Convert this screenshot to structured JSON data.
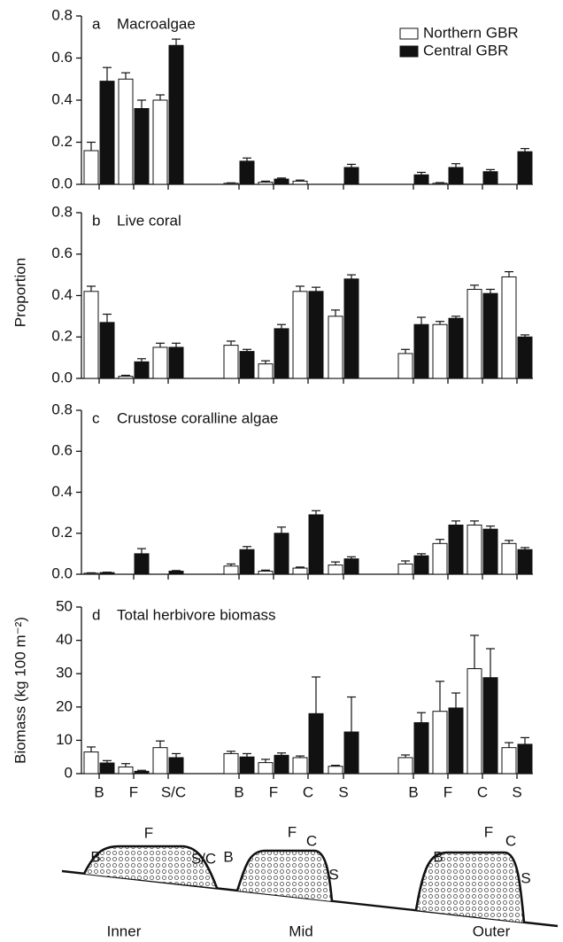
{
  "chart_data": [
    {
      "type": "bar",
      "panel": "a",
      "title": "Macroalgae",
      "ylim": [
        0,
        0.8
      ],
      "yticks": [
        {
          "value": 0,
          "label": "0.0"
        },
        0.2,
        0.4,
        0.6,
        0.8
      ],
      "series": [
        {
          "name": "Northern GBR",
          "color": "#ffffff",
          "values": [
            0.16,
            0.5,
            0.4,
            0.005,
            0.01,
            0.015,
            0,
            0,
            0.005,
            0,
            0
          ],
          "errors": [
            0.04,
            0.03,
            0.025,
            0.002,
            0.005,
            0.005,
            0,
            0,
            0.003,
            0,
            0
          ]
        },
        {
          "name": "Central GBR",
          "color": "#111111",
          "values": [
            0.49,
            0.36,
            0.66,
            0.11,
            0.025,
            0,
            0.08,
            0.045,
            0.08,
            0.06,
            0.155
          ],
          "errors": [
            0.065,
            0.04,
            0.03,
            0.015,
            0.005,
            0,
            0.015,
            0.012,
            0.018,
            0.01,
            0.015
          ]
        }
      ]
    },
    {
      "type": "bar",
      "panel": "b",
      "title": "Live coral",
      "ylabel": "Proportion",
      "ylim": [
        0,
        0.8
      ],
      "yticks": [
        {
          "value": 0,
          "label": "0.0"
        },
        0.2,
        0.4,
        0.6,
        0.8
      ],
      "series": [
        {
          "name": "Northern GBR",
          "color": "#ffffff",
          "values": [
            0.42,
            0.01,
            0.15,
            0.16,
            0.07,
            0.42,
            0.3,
            0.12,
            0.26,
            0.43,
            0.49
          ],
          "errors": [
            0.025,
            0.005,
            0.02,
            0.02,
            0.015,
            0.025,
            0.03,
            0.02,
            0.015,
            0.02,
            0.025
          ]
        },
        {
          "name": "Central GBR",
          "color": "#111111",
          "values": [
            0.27,
            0.08,
            0.15,
            0.13,
            0.24,
            0.42,
            0.48,
            0.26,
            0.29,
            0.41,
            0.2
          ],
          "errors": [
            0.04,
            0.015,
            0.02,
            0.01,
            0.02,
            0.02,
            0.02,
            0.035,
            0.01,
            0.02,
            0.01
          ]
        }
      ]
    },
    {
      "type": "bar",
      "panel": "c",
      "title": "Crustose coralline algae",
      "ylim": [
        0,
        0.8
      ],
      "yticks": [
        {
          "value": 0,
          "label": "0.0"
        },
        0.2,
        0.4,
        0.6,
        0.8
      ],
      "series": [
        {
          "name": "Northern GBR",
          "color": "#ffffff",
          "values": [
            0.005,
            0,
            0,
            0.04,
            0.015,
            0.03,
            0.045,
            0.05,
            0.15,
            0.24,
            0.15
          ],
          "errors": [
            0.002,
            0,
            0,
            0.01,
            0.005,
            0.005,
            0.015,
            0.015,
            0.02,
            0.02,
            0.015
          ]
        },
        {
          "name": "Central GBR",
          "color": "#111111",
          "values": [
            0.008,
            0.1,
            0.015,
            0.12,
            0.2,
            0.29,
            0.075,
            0.09,
            0.24,
            0.22,
            0.12
          ],
          "errors": [
            0.002,
            0.025,
            0.003,
            0.015,
            0.03,
            0.02,
            0.01,
            0.01,
            0.02,
            0.015,
            0.01
          ]
        }
      ]
    },
    {
      "type": "bar",
      "panel": "d",
      "title": "Total herbivore biomass",
      "ylabel": "Biomass (kg 100 m⁻²)",
      "ylim": [
        0,
        50
      ],
      "yticks": [
        0,
        10,
        20,
        30,
        40,
        50
      ],
      "categories": [
        "B",
        "F",
        "S/C",
        "B",
        "F",
        "C",
        "S",
        "B",
        "F",
        "C",
        "S"
      ],
      "series": [
        {
          "name": "Northern GBR",
          "color": "#ffffff",
          "values": [
            6.5,
            2,
            7.8,
            6,
            3.3,
            4.8,
            2.2,
            4.8,
            18.7,
            31.5,
            7.8
          ],
          "errors": [
            1.5,
            1,
            2,
            0.7,
            1,
            0.5,
            0.3,
            0.8,
            9,
            10,
            1.5
          ]
        },
        {
          "name": "Central GBR",
          "color": "#111111",
          "values": [
            3.2,
            0.7,
            4.8,
            5,
            5.5,
            18,
            12.5,
            15.3,
            19.7,
            28.8,
            8.8
          ],
          "errors": [
            0.7,
            0.3,
            1.2,
            1,
            0.7,
            11,
            10.5,
            3,
            4.5,
            8.7,
            2
          ]
        }
      ]
    }
  ],
  "reef_diagram": {
    "inner": {
      "name": "Inner",
      "zones": [
        "B",
        "F",
        "S/C"
      ]
    },
    "mid": {
      "name": "Mid",
      "zones": [
        "B",
        "F",
        "C",
        "S"
      ]
    },
    "outer": {
      "name": "Outer",
      "zones": [
        "B",
        "F",
        "C",
        "S"
      ]
    }
  }
}
